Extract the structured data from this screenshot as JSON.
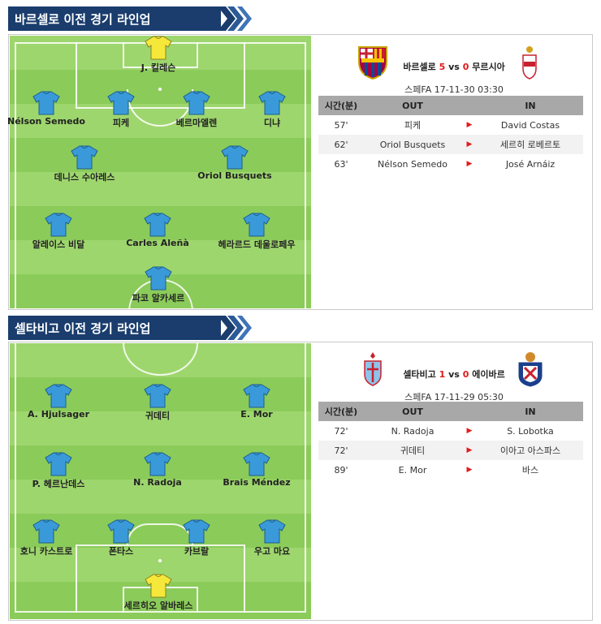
{
  "sections": [
    {
      "title": "바르셀로 이전 경기 라인업",
      "keeper_color": "#f6e83a",
      "players": [
        {
          "name": "J. 킬레슨",
          "keeper": true
        },
        {
          "name": "Nélson Semedo"
        },
        {
          "name": "피케"
        },
        {
          "name": "베르마엘렌"
        },
        {
          "name": "디냐"
        },
        {
          "name": "데니스 수아레스"
        },
        {
          "name": "Oriol Busquets"
        },
        {
          "name": "알레이스 비달"
        },
        {
          "name": "Carles Aleñà"
        },
        {
          "name": "헤라르드 데울로페우"
        },
        {
          "name": "파코 알카세르"
        }
      ],
      "match": {
        "home": "바르셀로",
        "home_score": "5",
        "vs": "vs",
        "away_score": "0",
        "away": "무르시아",
        "league_time": "스페FA 17-11-30 03:30"
      },
      "table": {
        "headers": [
          "시간(분)",
          "OUT",
          "IN"
        ],
        "rows": [
          {
            "min": "57'",
            "out": "피케",
            "in": "David Costas"
          },
          {
            "min": "62'",
            "out": "Oriol Busquets",
            "in": "세르히 로베르토"
          },
          {
            "min": "63'",
            "out": "Nélson Semedo",
            "in": "José Arnáiz"
          }
        ]
      }
    },
    {
      "title": "셀타비고 이전 경기 라인업",
      "keeper_color": "#f6e83a",
      "players": [
        {
          "name": "A. Hjulsager"
        },
        {
          "name": "귀데티"
        },
        {
          "name": "E. Mor"
        },
        {
          "name": "P. 헤르난데스"
        },
        {
          "name": "N. Radoja"
        },
        {
          "name": "Brais Méndez"
        },
        {
          "name": "호니 카스트로"
        },
        {
          "name": "폰타스"
        },
        {
          "name": "카브랄"
        },
        {
          "name": "우고 마요"
        },
        {
          "name": "세르히오 알바레스",
          "keeper": true
        }
      ],
      "match": {
        "home": "셀타비고",
        "home_score": "1",
        "vs": "vs",
        "away_score": "0",
        "away": "에이바르",
        "league_time": "스페FA 17-11-29 05:30"
      },
      "table": {
        "headers": [
          "시간(분)",
          "OUT",
          "IN"
        ],
        "rows": [
          {
            "min": "72'",
            "out": "N. Radoja",
            "in": "S. Lobotka"
          },
          {
            "min": "72'",
            "out": "귀데티",
            "in": "이아고 아스파스"
          },
          {
            "min": "89'",
            "out": "E. Mor",
            "in": "바스"
          }
        ]
      }
    }
  ],
  "colors": {
    "header_navy": "#1a3d6d",
    "shirt_blue": "#3a9ad9",
    "pitch_light": "#9ed66e",
    "pitch_dark": "#8bcb5a",
    "score_red": "#e21a1a"
  }
}
